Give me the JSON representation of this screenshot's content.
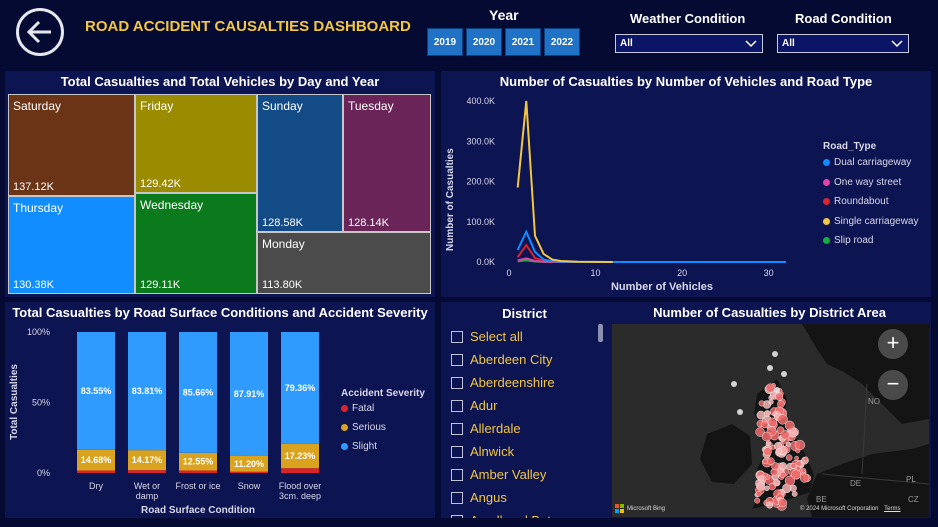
{
  "header": {
    "title": "ROAD ACCIDENT CAUSALTIES DASHBOARD",
    "year_label": "Year",
    "years": [
      "2019",
      "2020",
      "2021",
      "2022"
    ],
    "weather_label": "Weather Condition",
    "weather_value": "All",
    "road_label": "Road Condition",
    "road_value": "All"
  },
  "treemap": {
    "title": "Total Casualties and Total Vehicles by Day and Year",
    "cells": [
      {
        "day": "Saturday",
        "value": "137.12K",
        "color": "#6b3417"
      },
      {
        "day": "Thursday",
        "value": "130.38K",
        "color": "#118dff"
      },
      {
        "day": "Friday",
        "value": "129.42K",
        "color": "#9b8b00"
      },
      {
        "day": "Wednesday",
        "value": "129.11K",
        "color": "#0b7a1c"
      },
      {
        "day": "Sunday",
        "value": "128.58K",
        "color": "#124b86"
      },
      {
        "day": "Tuesday",
        "value": "128.14K",
        "color": "#6a2458"
      },
      {
        "day": "Monday",
        "value": "113.80K",
        "color": "#4b4b4b"
      }
    ]
  },
  "line_chart": {
    "title": "Number of Casualties by Number of Vehicles and Road Type",
    "xlabel": "Number of Vehicles",
    "ylabel": "Number of Casualties",
    "legend_title": "Road_Type",
    "y_ticks": [
      "0.0K",
      "100.0K",
      "200.0K",
      "300.0K",
      "400.0K"
    ],
    "x_ticks": [
      "0",
      "10",
      "20",
      "30"
    ]
  },
  "bar_chart": {
    "title": "Total Casualties by Road Surface Conditions and Accident Severity",
    "xlabel": "Road Surface Condition",
    "ylabel": "Total Casualties",
    "legend_title": "Accident Severity",
    "y_ticks": [
      "0%",
      "50%",
      "100%"
    ],
    "value_labels": {
      "slight": [
        "83.55%",
        "83.81%",
        "85.66%",
        "87.91%",
        "79.36%"
      ],
      "serious": [
        "14.68%",
        "14.17%",
        "12.55%",
        "11.20%",
        "17.23%"
      ]
    }
  },
  "district": {
    "title": "District",
    "items": [
      "Select all",
      "Aberdeen City",
      "Aberdeenshire",
      "Adur",
      "Allerdale",
      "Alnwick",
      "Amber Valley",
      "Angus",
      "Argyll and Bute"
    ]
  },
  "map": {
    "title": "Number of Casualties by District Area",
    "attribution_logo": "Microsoft Bing",
    "attribution": "© 2024 Microsoft Corporation",
    "terms": "Terms",
    "zoom_in": "+",
    "zoom_out": "−",
    "place_labels": [
      "NO",
      "DE",
      "PL",
      "BE",
      "CZ"
    ]
  },
  "chart_data": [
    {
      "type": "line",
      "title": "Number of Casualties by Number of Vehicles and Road Type",
      "xlabel": "Number of Vehicles",
      "ylabel": "Number of Casualties",
      "xlim": [
        0,
        32
      ],
      "ylim": [
        0,
        400000
      ],
      "legend_placement": "right",
      "series": [
        {
          "name": "Dual carriageway",
          "color": "#118dff",
          "x": [
            1,
            2,
            3,
            4,
            5,
            6,
            8,
            10,
            15,
            20,
            25,
            32
          ],
          "values": [
            30000,
            75000,
            25000,
            6000,
            2000,
            800,
            300,
            100,
            30,
            10,
            5,
            0
          ]
        },
        {
          "name": "One way street",
          "color": "#e044a7",
          "x": [
            1,
            2,
            3,
            4,
            5,
            6,
            8,
            10
          ],
          "values": [
            4000,
            9000,
            2500,
            700,
            200,
            80,
            20,
            0
          ]
        },
        {
          "name": "Roundabout",
          "color": "#d9242b",
          "x": [
            1,
            2,
            3,
            4,
            5,
            6,
            8,
            10
          ],
          "values": [
            12000,
            42000,
            10000,
            2500,
            800,
            300,
            60,
            0
          ]
        },
        {
          "name": "Single carriageway",
          "color": "#f2c641",
          "x": [
            1,
            2,
            3,
            4,
            5,
            6,
            8,
            10,
            12
          ],
          "values": [
            185000,
            400000,
            65000,
            20000,
            6000,
            2500,
            600,
            150,
            0
          ]
        },
        {
          "name": "Slip road",
          "color": "#1aab40",
          "x": [
            1,
            2,
            3,
            4,
            5,
            6,
            8
          ],
          "values": [
            1500,
            4000,
            1200,
            300,
            100,
            30,
            0
          ]
        }
      ]
    },
    {
      "type": "bar",
      "stacked": "100%",
      "title": "Total Casualties by Road Surface Conditions and Accident Severity",
      "xlabel": "Road Surface Condition",
      "ylabel": "Total Casualties",
      "categories": [
        "Dry",
        "Wet or damp",
        "Frost or ice",
        "Snow",
        "Flood over 3cm. deep"
      ],
      "ylim": [
        0,
        100
      ],
      "legend_placement": "right",
      "series": [
        {
          "name": "Fatal",
          "color": "#d9242b",
          "values": [
            1.77,
            2.02,
            1.79,
            0.89,
            3.41
          ]
        },
        {
          "name": "Serious",
          "color": "#d9a21f",
          "values": [
            14.68,
            14.17,
            12.55,
            11.2,
            17.23
          ]
        },
        {
          "name": "Slight",
          "color": "#2f9bff",
          "values": [
            83.55,
            83.81,
            85.66,
            87.91,
            79.36
          ]
        }
      ]
    },
    {
      "type": "treemap",
      "title": "Total Casualties and Total Vehicles by Day and Year",
      "categories": [
        "Saturday",
        "Thursday",
        "Friday",
        "Wednesday",
        "Sunday",
        "Tuesday",
        "Monday"
      ],
      "values": [
        137120,
        130380,
        129420,
        129110,
        128580,
        128140,
        113800
      ]
    }
  ]
}
